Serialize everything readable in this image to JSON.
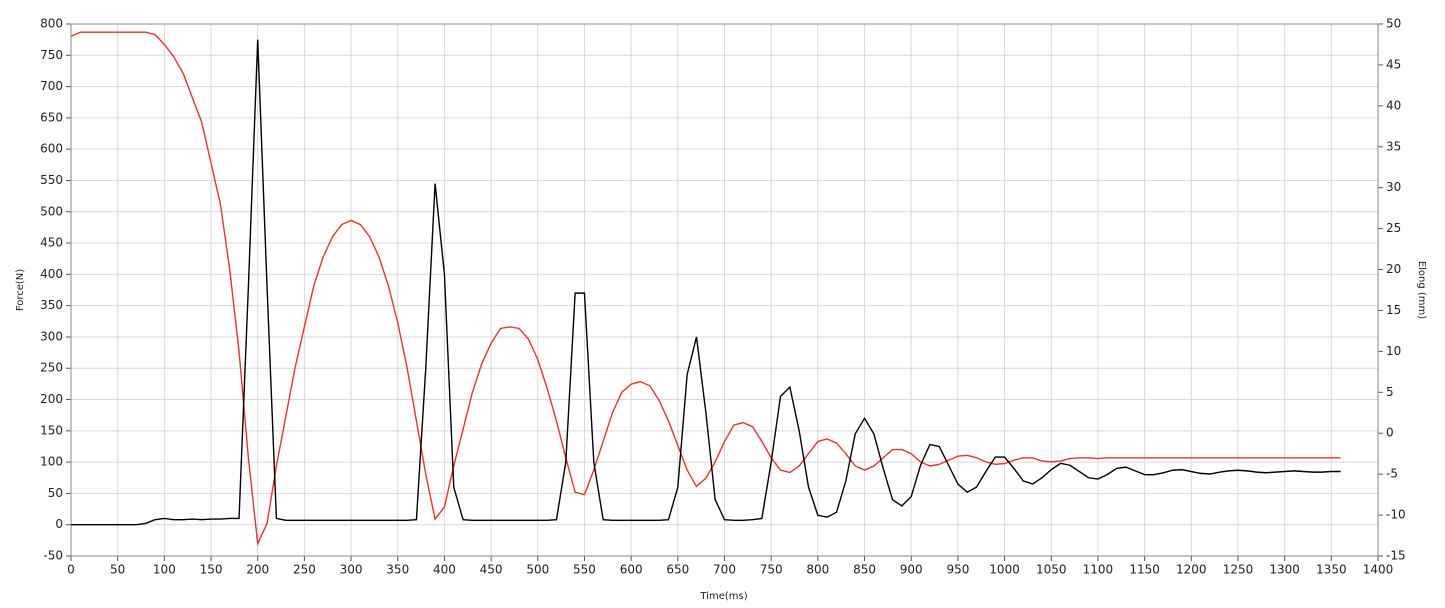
{
  "chart_data": {
    "type": "line",
    "x_label": "Time(ms)",
    "y_label": "Force(N)",
    "y2_label": "Elong (mm)",
    "x": [
      0,
      10,
      20,
      30,
      40,
      50,
      60,
      70,
      80,
      90,
      100,
      110,
      120,
      130,
      140,
      150,
      160,
      170,
      180,
      190,
      200,
      210,
      220,
      230,
      240,
      250,
      260,
      270,
      280,
      290,
      300,
      310,
      320,
      330,
      340,
      350,
      360,
      370,
      380,
      390,
      400,
      410,
      420,
      430,
      440,
      450,
      460,
      470,
      480,
      490,
      500,
      510,
      520,
      530,
      540,
      550,
      560,
      570,
      580,
      590,
      600,
      610,
      620,
      630,
      640,
      650,
      660,
      670,
      680,
      690,
      700,
      710,
      720,
      730,
      740,
      750,
      760,
      770,
      780,
      790,
      800,
      810,
      820,
      830,
      840,
      850,
      860,
      870,
      880,
      890,
      900,
      910,
      920,
      930,
      940,
      950,
      960,
      970,
      980,
      990,
      1000,
      1010,
      1020,
      1030,
      1040,
      1050,
      1060,
      1070,
      1080,
      1090,
      1100,
      1110,
      1120,
      1130,
      1140,
      1150,
      1160,
      1170,
      1180,
      1190,
      1200,
      1210,
      1220,
      1230,
      1240,
      1250,
      1260,
      1270,
      1280,
      1290,
      1300,
      1310,
      1320,
      1330,
      1340,
      1350,
      1360
    ],
    "series": [
      {
        "color": "#000000",
        "values": [
          0,
          0,
          0,
          0,
          0,
          0,
          0,
          0,
          2,
          8,
          10,
          8,
          8,
          9,
          8,
          9,
          9,
          10,
          10,
          380,
          775,
          380,
          10,
          7,
          7,
          7,
          7,
          7,
          7,
          7,
          7,
          7,
          7,
          7,
          7,
          7,
          7,
          8,
          250,
          545,
          400,
          60,
          8,
          7,
          7,
          7,
          7,
          7,
          7,
          7,
          7,
          7,
          8,
          100,
          370,
          370,
          100,
          8,
          7,
          7,
          7,
          7,
          7,
          7,
          8,
          60,
          240,
          300,
          180,
          40,
          8,
          7,
          7,
          8,
          10,
          100,
          205,
          220,
          150,
          60,
          15,
          12,
          20,
          70,
          145,
          170,
          145,
          90,
          40,
          30,
          45,
          95,
          128,
          125,
          95,
          65,
          52,
          60,
          85,
          108,
          108,
          90,
          70,
          65,
          75,
          88,
          98,
          95,
          85,
          75,
          73,
          80,
          90,
          92,
          86,
          80,
          80,
          83,
          87,
          88,
          85,
          82,
          81,
          84,
          86,
          87,
          86,
          84,
          83,
          84,
          85,
          86,
          85,
          84,
          84,
          85,
          85
        ]
      },
      {
        "color": "#e8322f",
        "axis": "y2",
        "values": [
          48.5,
          49,
          49,
          49,
          49,
          49,
          49,
          49,
          49,
          48.7,
          47.5,
          46,
          44,
          41,
          38,
          33,
          28,
          20,
          10,
          -3,
          -13.5,
          -11,
          -4,
          2,
          8,
          13,
          18,
          21.5,
          24,
          25.5,
          26,
          25.5,
          24,
          21.5,
          18,
          13.5,
          8,
          1.5,
          -5,
          -10.5,
          -9,
          -4,
          0.5,
          5,
          8.5,
          11,
          12.8,
          13,
          12.8,
          11.5,
          9,
          5.5,
          1.5,
          -3,
          -7.2,
          -7.5,
          -4.5,
          -1,
          2.5,
          5,
          6,
          6.3,
          5.8,
          4,
          1.5,
          -1.5,
          -4.5,
          -6.5,
          -5.5,
          -3.5,
          -1,
          1,
          1.3,
          0.8,
          -1,
          -3,
          -4.5,
          -4.8,
          -4,
          -2.5,
          -1,
          -0.7,
          -1.2,
          -2.5,
          -4,
          -4.5,
          -4,
          -3,
          -2,
          -2,
          -2.5,
          -3.5,
          -4,
          -3.8,
          -3.3,
          -2.8,
          -2.7,
          -3,
          -3.5,
          -3.8,
          -3.7,
          -3.3,
          -3,
          -3,
          -3.4,
          -3.5,
          -3.4,
          -3.1,
          -3,
          -3,
          -3.1,
          -3,
          -3,
          -3,
          -3,
          -3,
          -3,
          -3,
          -3,
          -3,
          -3,
          -3,
          -3,
          -3,
          -3,
          -3,
          -3,
          -3,
          -3,
          -3,
          -3,
          -3,
          -3,
          -3,
          -3,
          -3,
          -3
        ]
      }
    ],
    "xlim": [
      0,
      1400
    ],
    "xticks": [
      0,
      50,
      100,
      150,
      200,
      250,
      300,
      350,
      400,
      450,
      500,
      550,
      600,
      650,
      700,
      750,
      800,
      850,
      900,
      950,
      1000,
      1050,
      1100,
      1150,
      1200,
      1250,
      1300,
      1350,
      1400
    ],
    "ylim": [
      -50,
      800
    ],
    "yticks": [
      -50,
      0,
      50,
      100,
      150,
      200,
      250,
      300,
      350,
      400,
      450,
      500,
      550,
      600,
      650,
      700,
      750,
      800
    ],
    "y2lim": [
      -15,
      50
    ],
    "y2ticks": [
      -15,
      -10,
      -5,
      0,
      5,
      10,
      15,
      20,
      25,
      30,
      35,
      40,
      45,
      50
    ],
    "grid": true
  }
}
